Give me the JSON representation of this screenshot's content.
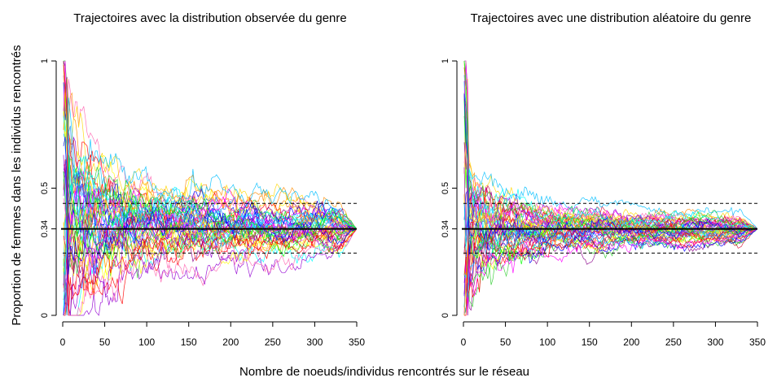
{
  "figure": {
    "ylabel": "Proportion de femmes dans les individus rencontrés",
    "xlabel": "Nombre de noeuds/individus rencontrés sur le réseau"
  },
  "chart_data": [
    {
      "type": "line",
      "title": "Trajectoires avec la distribution observée du genre",
      "xlabel": "Nombre de noeuds/individus rencontrés sur le réseau",
      "ylabel": "Proportion de femmes dans les individus rencontrés",
      "xlim": [
        0,
        350
      ],
      "ylim": [
        0,
        1
      ],
      "x_ticks": [
        0,
        50,
        100,
        150,
        200,
        250,
        300,
        350
      ],
      "y_ticks": [
        0,
        0.34,
        0.5,
        1
      ],
      "y_tick_labels": [
        "0",
        "0.34",
        "0.5",
        "1"
      ],
      "reference_line": 0.34,
      "dashed_bands": [
        0.245,
        0.44
      ],
      "n_trajectories": 50,
      "spread_scale": 1.0,
      "grid": false,
      "legend": "none"
    },
    {
      "type": "line",
      "title": "Trajectoires avec une distribution aléatoire du genre",
      "xlabel": "Nombre de noeuds/individus rencontrés sur le réseau",
      "ylabel": "Proportion de femmes dans les individus rencontrés",
      "xlim": [
        0,
        350
      ],
      "ylim": [
        0,
        1
      ],
      "x_ticks": [
        0,
        50,
        100,
        150,
        200,
        250,
        300,
        350
      ],
      "y_ticks": [
        0,
        0.34,
        0.5,
        1
      ],
      "y_tick_labels": [
        "0",
        "0.34",
        "0.5",
        "1"
      ],
      "reference_line": 0.34,
      "dashed_bands": [
        0.245,
        0.44
      ],
      "n_trajectories": 50,
      "spread_scale": 0.5,
      "grid": false,
      "legend": "none"
    }
  ],
  "colors": {
    "trajectories": [
      "#ff00ff",
      "#00ffff",
      "#ff0000",
      "#00ff00",
      "#0000ff",
      "#ffff00",
      "#ff8c00",
      "#8b008b",
      "#00bfff",
      "#ff69b4",
      "#32cd32",
      "#dc143c",
      "#1e90ff",
      "#ffd700",
      "#9400d3"
    ],
    "reference": "#000000"
  }
}
